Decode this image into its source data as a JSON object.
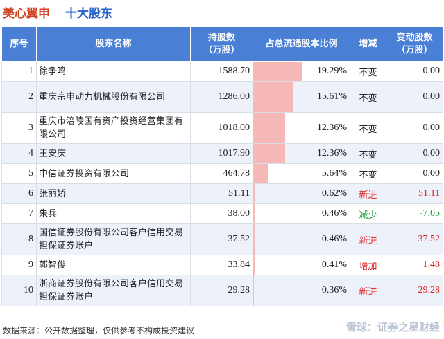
{
  "header": {
    "company": "美心翼申",
    "subtitle": "十大股东"
  },
  "columns": [
    "序号",
    "股东名称",
    "持股数\n（万股）",
    "占总流通股本比例",
    "增减",
    "变动股数\n（万股）"
  ],
  "rows": [
    {
      "rank": "1",
      "name": "徐争鸣",
      "shares": "1588.70",
      "ratio": "19.29%",
      "ratio_value": 19.29,
      "change": "不变",
      "change_color": "#222222",
      "delta": "0.00",
      "delta_color": "#222222"
    },
    {
      "rank": "2",
      "name": "重庆宗申动力机械股份有限公司",
      "shares": "1286.00",
      "ratio": "15.61%",
      "ratio_value": 15.61,
      "change": "不变",
      "change_color": "#222222",
      "delta": "0.00",
      "delta_color": "#222222"
    },
    {
      "rank": "3",
      "name": "重庆市涪陵国有资产投资经营集团有限公司",
      "shares": "1018.00",
      "ratio": "12.36%",
      "ratio_value": 12.36,
      "change": "不变",
      "change_color": "#222222",
      "delta": "0.00",
      "delta_color": "#222222"
    },
    {
      "rank": "4",
      "name": "王安庆",
      "shares": "1017.90",
      "ratio": "12.36%",
      "ratio_value": 12.36,
      "change": "不变",
      "change_color": "#222222",
      "delta": "0.00",
      "delta_color": "#222222"
    },
    {
      "rank": "5",
      "name": "中信证券投资有限公司",
      "shares": "464.78",
      "ratio": "5.64%",
      "ratio_value": 5.64,
      "change": "不变",
      "change_color": "#222222",
      "delta": "0.00",
      "delta_color": "#222222"
    },
    {
      "rank": "6",
      "name": "张丽娇",
      "shares": "51.11",
      "ratio": "0.62%",
      "ratio_value": 0.62,
      "change": "新进",
      "change_color": "#e02020",
      "delta": "51.11",
      "delta_color": "#e02020"
    },
    {
      "rank": "7",
      "name": "朱兵",
      "shares": "38.00",
      "ratio": "0.46%",
      "ratio_value": 0.46,
      "change": "减少",
      "change_color": "#1f9a3a",
      "delta": "-7.05",
      "delta_color": "#1f9a3a"
    },
    {
      "rank": "8",
      "name": "国信证券股份有限公司客户信用交易担保证券账户",
      "shares": "37.52",
      "ratio": "0.46%",
      "ratio_value": 0.46,
      "change": "新进",
      "change_color": "#e02020",
      "delta": "37.52",
      "delta_color": "#e02020"
    },
    {
      "rank": "9",
      "name": "郭智俊",
      "shares": "33.84",
      "ratio": "0.41%",
      "ratio_value": 0.41,
      "change": "增加",
      "change_color": "#e02020",
      "delta": "1.48",
      "delta_color": "#e02020"
    },
    {
      "rank": "10",
      "name": "浙商证券股份有限公司客户信用交易担保证券账户",
      "shares": "29.28",
      "ratio": "0.36%",
      "ratio_value": 0.36,
      "change": "新进",
      "change_color": "#e02020",
      "delta": "29.28",
      "delta_color": "#e02020"
    }
  ],
  "footer": {
    "source": "数据来源：公开数据整理，仅供参考不构成投资建议",
    "brand": "雪球：证券之星财经"
  },
  "colors": {
    "header_bg": "#4a7fd6",
    "bar": "#f7b8b8",
    "up": "#e02020",
    "down": "#1f9a3a"
  }
}
